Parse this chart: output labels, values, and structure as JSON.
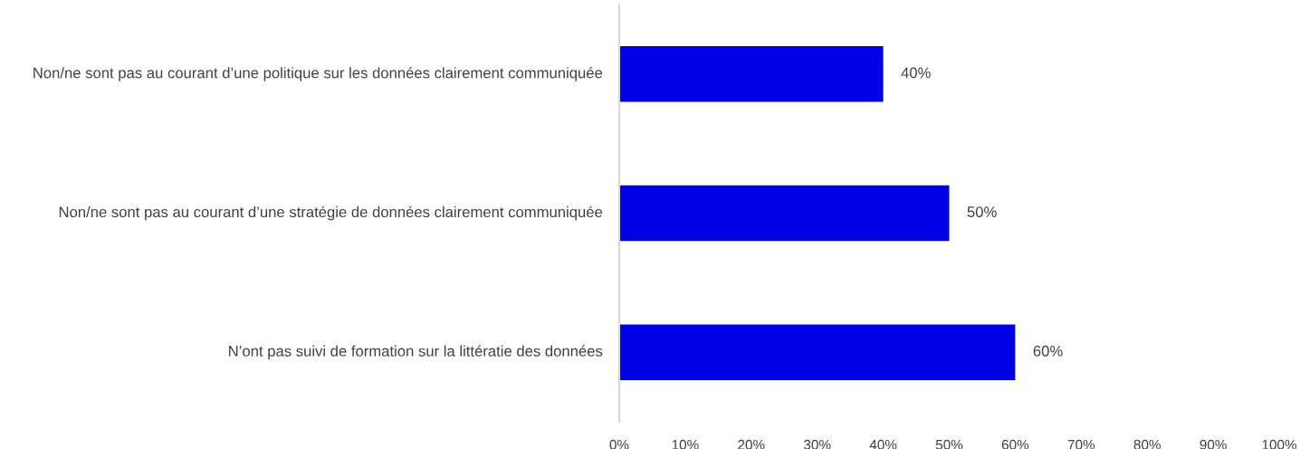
{
  "chart_data": {
    "type": "bar",
    "orientation": "horizontal",
    "categories": [
      "Non/ne sont pas au courant d’une politique sur les données clairement communiquée",
      "Non/ne sont pas au courant d’une stratégie de données clairement communiquée",
      "N’ont pas suivi de formation sur la littératie des données"
    ],
    "values": [
      40,
      50,
      60
    ],
    "color": "#0000e6",
    "value_labels": [
      "40%",
      "50%",
      "60%"
    ],
    "xlim": [
      0,
      100
    ],
    "xticks": [
      {
        "value": 0,
        "label": "0%"
      },
      {
        "value": 10,
        "label": "10%"
      },
      {
        "value": 20,
        "label": "20%"
      },
      {
        "value": 30,
        "label": "30%"
      },
      {
        "value": 40,
        "label": "40%"
      },
      {
        "value": 50,
        "label": "50%"
      },
      {
        "value": 60,
        "label": "60%"
      },
      {
        "value": 70,
        "label": "70%"
      },
      {
        "value": 80,
        "label": "80%"
      },
      {
        "value": 90,
        "label": "90%"
      },
      {
        "value": 100,
        "label": "100%"
      }
    ],
    "grid": false,
    "legend": false
  }
}
